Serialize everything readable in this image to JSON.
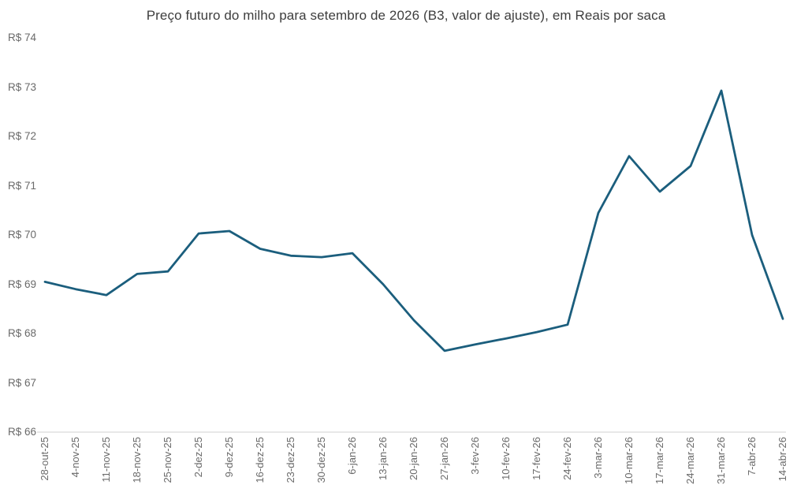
{
  "chart_data": {
    "type": "line",
    "title": "Preço futuro do milho para setembro de 2026 (B3, valor de ajuste), em Reais por saca",
    "categories": [
      "28-out-25",
      "4-nov-25",
      "11-nov-25",
      "18-nov-25",
      "25-nov-25",
      "2-dez-25",
      "9-dez-25",
      "16-dez-25",
      "23-dez-25",
      "30-dez-25",
      "6-jan-26",
      "13-jan-26",
      "20-jan-26",
      "27-jan-26",
      "3-fev-26",
      "10-fev-26",
      "17-fev-26",
      "24-fev-26",
      "3-mar-26",
      "10-mar-26",
      "17-mar-26",
      "24-mar-26",
      "31-mar-26",
      "7-abr-26",
      "14-abr-26"
    ],
    "values": [
      69.05,
      68.9,
      68.78,
      69.21,
      69.26,
      70.03,
      70.08,
      69.72,
      69.58,
      69.55,
      69.63,
      69.0,
      68.27,
      67.65,
      67.78,
      67.9,
      68.03,
      68.18,
      70.45,
      71.6,
      70.88,
      71.4,
      72.93,
      70.0,
      68.3
    ],
    "xlabel": "",
    "ylabel": "",
    "ylim": [
      66,
      74
    ],
    "y_ticks": [
      66,
      67,
      68,
      69,
      70,
      71,
      72,
      73,
      74
    ],
    "y_tick_prefix": "R$ ",
    "grid": false,
    "legend": "none",
    "line_color": "#1b5e7d",
    "axis_line_color": "#d9d9d9",
    "title_color": "#3d3d3d",
    "tick_label_color": "#6a6a6a"
  }
}
